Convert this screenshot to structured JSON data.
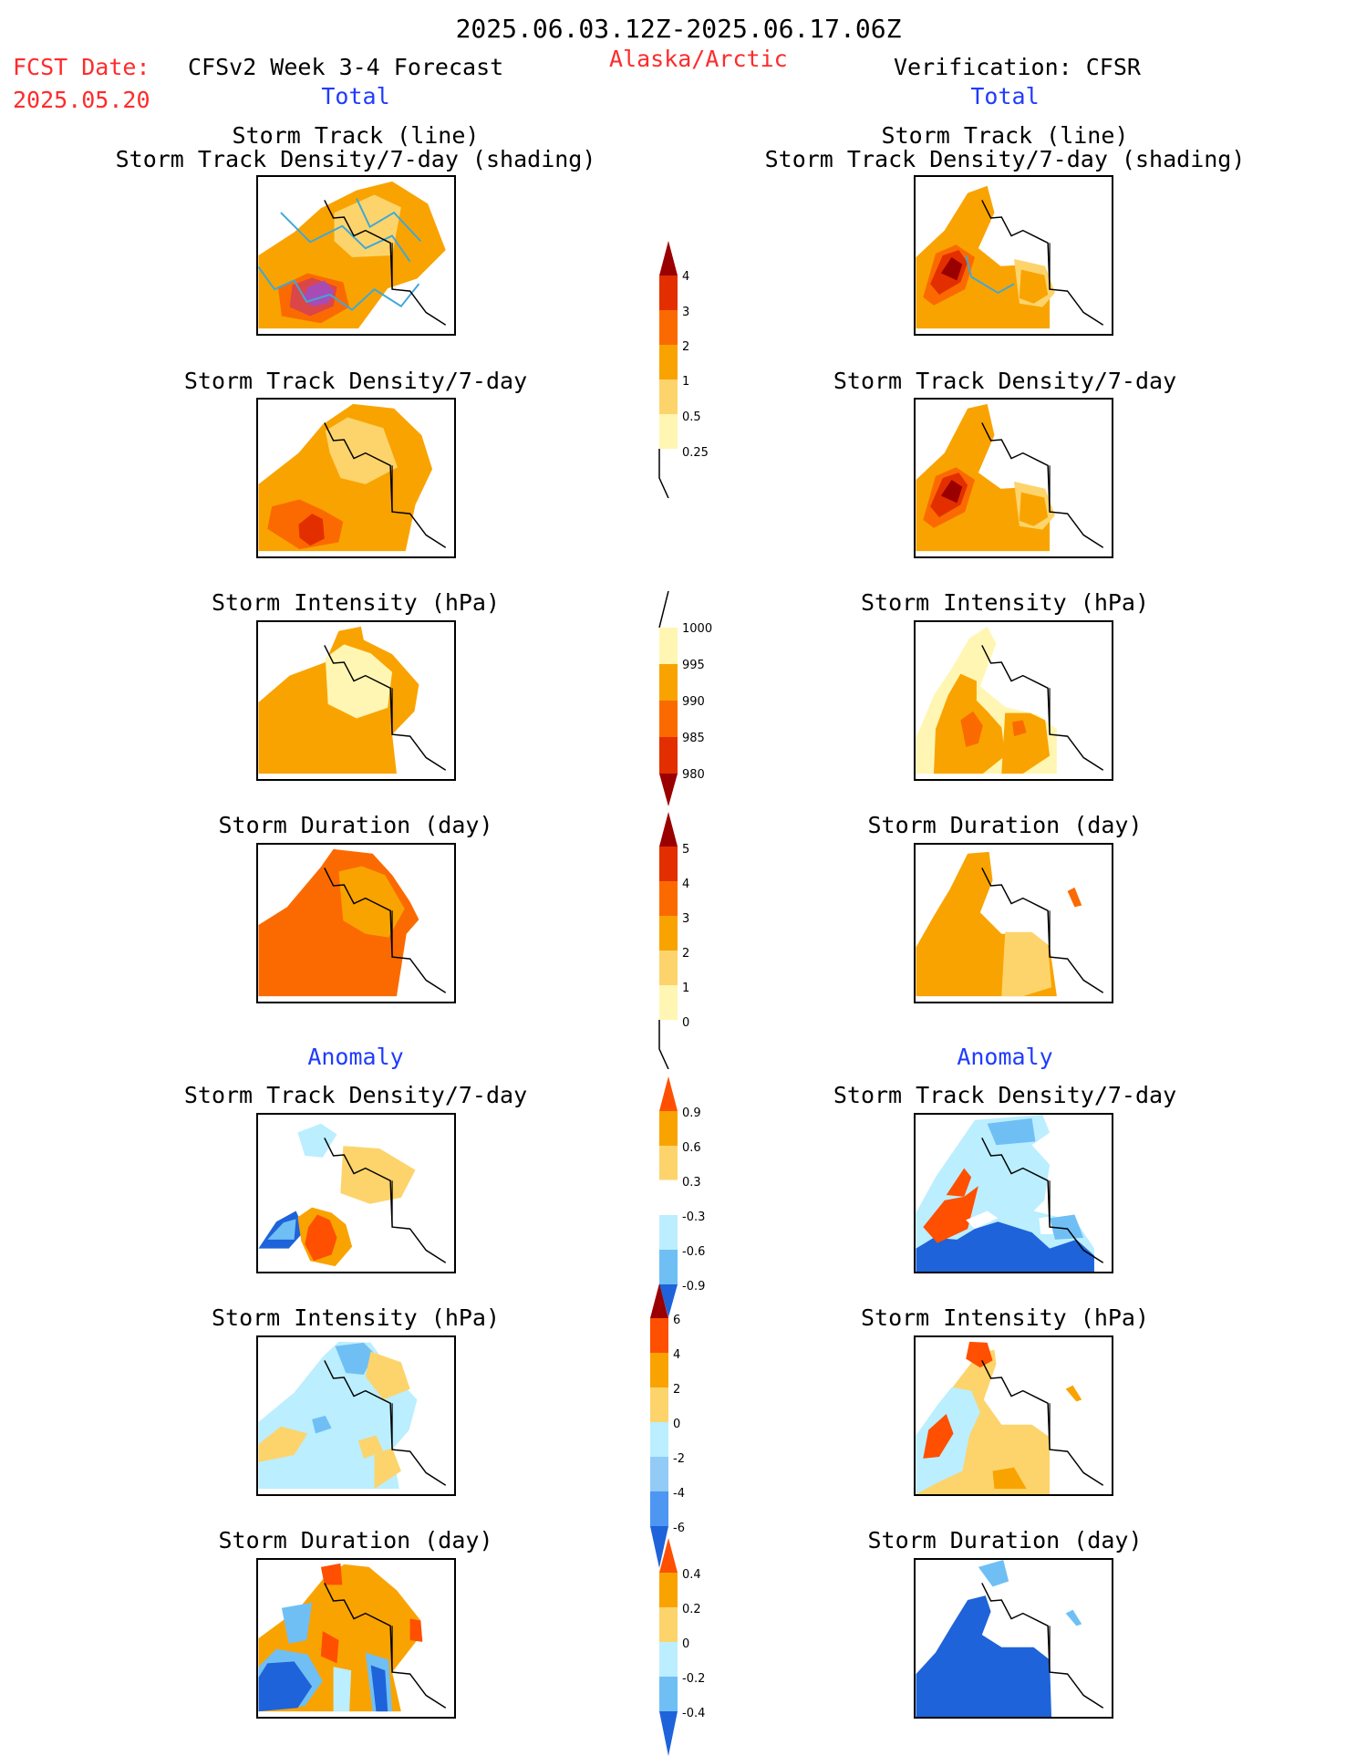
{
  "header": {
    "date_range": "2025.06.03.12Z-2025.06.17.06Z",
    "fcst_date_label": "FCST Date:",
    "fcst_date_value": "2025.05.20",
    "left_title": "CFSv2 Week 3-4 Forecast",
    "region": "Alaska/Arctic",
    "right_title": "Verification: CFSR",
    "left_total": "Total",
    "right_total": "Total"
  },
  "sections": {
    "anomaly_left": "Anomaly",
    "anomaly_right": "Anomaly"
  },
  "panels": [
    {
      "id": "total-track",
      "title_line1": "Storm Track (line)",
      "title_line2": "Storm Track Density/7-day (shading)"
    },
    {
      "id": "total-density",
      "title_line1": "Storm Track Density/7-day"
    },
    {
      "id": "total-intensity",
      "title_line1": "Storm Intensity (hPa)"
    },
    {
      "id": "total-duration",
      "title_line1": "Storm Duration (day)"
    },
    {
      "id": "anom-density",
      "title_line1": "Storm Track Density/7-day"
    },
    {
      "id": "anom-intensity",
      "title_line1": "Storm Intensity (hPa)"
    },
    {
      "id": "anom-duration",
      "title_line1": "Storm Duration (day)"
    }
  ],
  "colorbars": [
    {
      "id": "cb-total-density",
      "colors": [
        "#fff6b3",
        "#fcd46b",
        "#f9a300",
        "#fb6a00",
        "#e32f00",
        "#9b0000"
      ],
      "labels": [
        "0.25",
        "0.5",
        "1",
        "2",
        "3",
        "4"
      ]
    },
    {
      "id": "cb-intensity",
      "colors": [
        "#fff6b3",
        "#f9a300",
        "#fb6a00",
        "#e32f00",
        "#9b0000"
      ],
      "labels": [
        "1000",
        "995",
        "990",
        "985",
        "980"
      ]
    },
    {
      "id": "cb-duration",
      "colors": [
        "#fff6b3",
        "#fcd46b",
        "#f9a300",
        "#fb6a00",
        "#e32f00",
        "#9b0000"
      ],
      "labels": [
        "0",
        "1",
        "2",
        "3",
        "4",
        "5"
      ]
    },
    {
      "id": "cb-anom-density",
      "colors": [
        "#ff4f00",
        "#f9a300",
        "#fcd46b",
        "#ffffff",
        "#bbeeff",
        "#6fbff5",
        "#1e63d9"
      ],
      "labels": [
        "0.9",
        "0.6",
        "0.3",
        "-0.3",
        "-0.6",
        "-0.9"
      ]
    },
    {
      "id": "cb-anom-intensity",
      "colors": [
        "#9b0000",
        "#ff4f00",
        "#f9a300",
        "#fcd46b",
        "#bbeeff",
        "#92cbf5",
        "#4d96f2",
        "#1e63d9"
      ],
      "labels": [
        "6",
        "4",
        "2",
        "0",
        "-2",
        "-4",
        "-6"
      ]
    },
    {
      "id": "cb-anom-duration",
      "colors": [
        "#ff4f00",
        "#f9a300",
        "#fcd46b",
        "#bbeeff",
        "#6fbff5",
        "#1e63d9"
      ],
      "labels": [
        "0.4",
        "0.2",
        "0",
        "-0.2",
        "-0.4"
      ]
    }
  ]
}
